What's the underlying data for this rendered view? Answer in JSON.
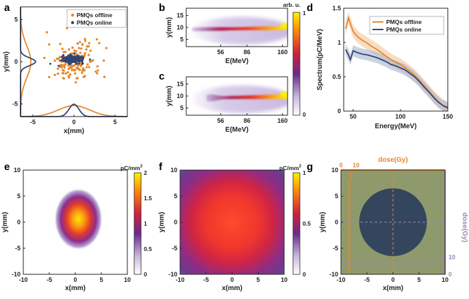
{
  "colors": {
    "offline": "#E8872D",
    "online": "#2F4574",
    "offline_band": "#F2C79A",
    "online_band": "#A9B4CF",
    "dose_h": "#E8872D",
    "dose_v": "#9E86B8",
    "g_bg": "#8E9A6B",
    "g_circle": "#33465E"
  },
  "chart_data": [
    {
      "panel": "a",
      "type": "scatter",
      "xlabel": "x(mm)",
      "ylabel": "y(mm)",
      "xlim": [
        -6.5,
        6.5
      ],
      "ylim": [
        -6.5,
        6.5
      ],
      "xticks": [
        "-5",
        "0",
        "5"
      ],
      "xtick_values": [
        -5,
        0,
        5
      ],
      "yticks": [
        "5",
        "0",
        "-5"
      ],
      "ytick_values": [
        5,
        0,
        -5
      ],
      "legend": [
        "PMQs offline",
        "PMQs online"
      ],
      "series": [
        {
          "name": "PMQs offline",
          "sigma_x": 1.6,
          "sigma_y": 1.6,
          "count": 160
        },
        {
          "name": "PMQs online",
          "sigma_x": 0.5,
          "sigma_y": 0.5,
          "count": 170
        }
      ],
      "projection": "gaussian profiles on left and bottom axes"
    },
    {
      "panel": "b",
      "type": "heatmap",
      "xlabel": "E(MeV)",
      "ylabel": "y(mm)",
      "xticks": [
        "56",
        "86",
        "160"
      ],
      "yticks": [
        "15",
        "10",
        "5"
      ],
      "ylim": [
        2,
        18
      ],
      "band": {
        "start_energy": "40",
        "center_y": 9,
        "peak_y": 10
      }
    },
    {
      "panel": "c",
      "type": "heatmap",
      "xlabel": "E(MeV)",
      "ylabel": "y(mm)",
      "xticks": [
        "56",
        "86",
        "160"
      ],
      "yticks": [
        "15",
        "10",
        "5"
      ],
      "ylim": [
        2,
        18
      ],
      "band": {
        "start_energy": "56",
        "center_y": 9,
        "peak_y": 10
      }
    },
    {
      "panel": "bc-colorbar",
      "label": "arb. u.",
      "ticks": [
        "1",
        "0"
      ]
    },
    {
      "panel": "d",
      "type": "line",
      "xlabel": "Energy(MeV)",
      "ylabel": "Spectrum(pC/MeV)",
      "xlim": [
        40,
        150
      ],
      "ylim": [
        0,
        1.5
      ],
      "xticks": [
        "50",
        "100",
        "150"
      ],
      "xtick_values": [
        50,
        100,
        150
      ],
      "yticks": [
        "0",
        "0.5",
        "1",
        "1.5"
      ],
      "ytick_values": [
        0,
        0.5,
        1,
        1.5
      ],
      "x": [
        42,
        45,
        47,
        50,
        55,
        60,
        65,
        70,
        75,
        80,
        85,
        90,
        95,
        100,
        105,
        110,
        115,
        120,
        125,
        130,
        135,
        140,
        145,
        150
      ],
      "series": [
        {
          "name": "PMQs offline",
          "values": [
            1.2,
            1.36,
            1.28,
            1.16,
            1.08,
            1.03,
            0.99,
            0.94,
            0.9,
            0.85,
            0.8,
            0.75,
            0.71,
            0.68,
            0.63,
            0.58,
            0.52,
            0.45,
            0.37,
            0.29,
            0.21,
            0.14,
            0.08,
            0.04
          ],
          "band": 0.09
        },
        {
          "name": "PMQs online",
          "values": [
            0.9,
            0.82,
            0.75,
            0.88,
            0.85,
            0.83,
            0.82,
            0.8,
            0.78,
            0.75,
            0.72,
            0.68,
            0.66,
            0.63,
            0.6,
            0.55,
            0.5,
            0.43,
            0.35,
            0.28,
            0.2,
            0.13,
            0.08,
            0.05
          ],
          "band": 0.08
        }
      ]
    },
    {
      "panel": "e",
      "type": "heatmap",
      "xlabel": "x(mm)",
      "ylabel": "y(mm)",
      "xlim": [
        -10,
        10
      ],
      "ylim": [
        -10,
        10
      ],
      "xticks": [
        "-10",
        "-5",
        "0",
        "5",
        "10"
      ],
      "yticks": [
        "10",
        "5",
        "0",
        "-5",
        "-10"
      ],
      "tick_values": [
        -10,
        -5,
        0,
        5,
        10
      ],
      "spot": {
        "sigma_x": 1.8,
        "sigma_y": 2.3
      },
      "colorbar": {
        "label": "pC/mm",
        "label_sup": "2",
        "ticks": [
          "2",
          "1.5",
          "1",
          "0.5",
          "0"
        ],
        "tick_values": [
          2,
          1.5,
          1,
          0.5,
          0
        ],
        "max": 2
      }
    },
    {
      "panel": "f",
      "type": "heatmap",
      "xlabel": "x(mm)",
      "ylabel": "y(mm)",
      "xlim": [
        -10,
        10
      ],
      "ylim": [
        -10,
        10
      ],
      "xticks": [
        "-10",
        "-5",
        "0",
        "5",
        "10"
      ],
      "yticks": [
        "10",
        "5",
        "0",
        "-5",
        "-10"
      ],
      "tick_values": [
        -10,
        -5,
        0,
        5,
        10
      ],
      "spot": {
        "sigma_x": 7.5,
        "sigma_y": 7.5
      },
      "colorbar": {
        "label": "pC/mm",
        "label_sup": "2",
        "ticks": [
          "1",
          "0.5",
          "0"
        ],
        "tick_values": [
          1,
          0.5,
          0
        ],
        "max": 1
      }
    },
    {
      "panel": "g",
      "type": "heatmap",
      "xlabel": "x(mm)",
      "ylabel": "y(mm)",
      "xlim": [
        -10,
        10
      ],
      "ylim": [
        -10,
        10
      ],
      "xticks": [
        "-10",
        "-5",
        "0",
        "5",
        "10"
      ],
      "yticks": [
        "10",
        "5",
        "0",
        "-5",
        "-10"
      ],
      "tick_values": [
        -10,
        -5,
        0,
        5,
        10
      ],
      "circle_radius_mm": 6.5,
      "top_axis": {
        "label": "dose(Gy)",
        "ticks": [
          "0",
          "10"
        ]
      },
      "right_axis": {
        "label": "dose(Gy)",
        "ticks": [
          "10",
          "0"
        ]
      }
    }
  ],
  "labels": {
    "panels": [
      "a",
      "b",
      "c",
      "d",
      "e",
      "f",
      "g"
    ]
  }
}
